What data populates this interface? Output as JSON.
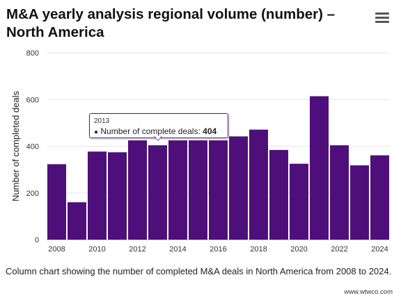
{
  "header": {
    "title": "M&A yearly analysis regional volume (number) – North America",
    "menu_icon": "hamburger-menu-icon"
  },
  "tooltip": {
    "category": "2013",
    "series_label": "Number of complete deals: ",
    "value": "404"
  },
  "caption": "Column chart showing the number of completed M&A deals in North America from 2008 to 2024.",
  "credit": "www.wtwco.com",
  "colors": {
    "bar": "#4f0f7a",
    "grid": "#e6e6e6",
    "axis_text": "#333333"
  },
  "chart_data": {
    "type": "bar",
    "categories": [
      "2008",
      "2009",
      "2010",
      "2011",
      "2012",
      "2013",
      "2014",
      "2015",
      "2016",
      "2017",
      "2018",
      "2019",
      "2020",
      "2021",
      "2022",
      "2023",
      "2024"
    ],
    "values": [
      323,
      160,
      377,
      374,
      425,
      404,
      425,
      425,
      425,
      442,
      471,
      384,
      325,
      614,
      404,
      318,
      361
    ],
    "x_tick_labels": [
      "2008",
      "2010",
      "2012",
      "2014",
      "2016",
      "2018",
      "2020",
      "2022",
      "2024"
    ],
    "y_ticks": [
      0,
      200,
      400,
      600,
      800
    ],
    "ylim": [
      0,
      800
    ],
    "ylabel": "Number of completed deals",
    "xlabel": "",
    "grid": true
  }
}
